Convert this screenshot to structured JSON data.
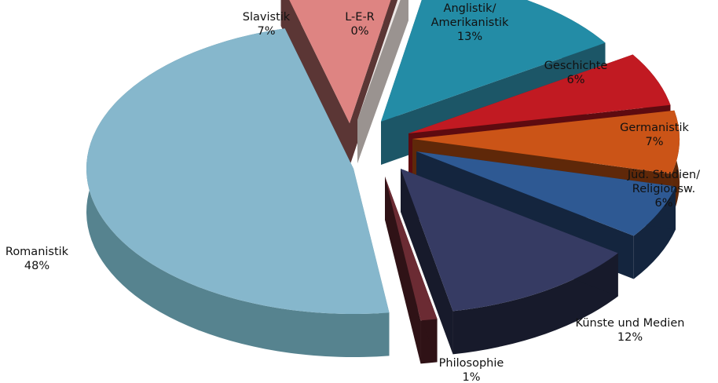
{
  "chart_data": {
    "type": "pie",
    "style": "3d-exploded",
    "slices": [
      {
        "label": [
          "Anglistik/",
          "Amerikanistik"
        ],
        "pct_text": "13%",
        "value": 13,
        "color": "#238CA6",
        "side": "#1C5667"
      },
      {
        "label": [
          "Geschichte"
        ],
        "pct_text": "6%",
        "value": 6,
        "color": "#C11A22",
        "side": "#5E0B10"
      },
      {
        "label": [
          "Germanistik"
        ],
        "pct_text": "7%",
        "value": 7,
        "color": "#CB5417",
        "side": "#5F2809"
      },
      {
        "label": [
          "Jüd. Studien/",
          "Religionsw."
        ],
        "pct_text": "6%",
        "value": 6,
        "color": "#2E5993",
        "side": "#14253E"
      },
      {
        "label": [
          "Künste und Medien"
        ],
        "pct_text": "12%",
        "value": 12,
        "color": "#363B63",
        "side": "#171A2B"
      },
      {
        "label": [
          "Philosophie"
        ],
        "pct_text": "1%",
        "value": 1,
        "color": "#6B2B33",
        "side": "#2F1216"
      },
      {
        "label": [
          "Romanistik"
        ],
        "pct_text": "48%",
        "value": 48,
        "color": "#86B7CC",
        "side": "#56838F"
      },
      {
        "label": [
          "Slavistik"
        ],
        "pct_text": "7%",
        "value": 7,
        "color": "#DE8482",
        "side": "#5B3635"
      },
      {
        "label": [
          "L-E-R"
        ],
        "pct_text": "0%",
        "value": 0,
        "color": "#EDE8E6",
        "side": "#9A9390"
      }
    ]
  }
}
